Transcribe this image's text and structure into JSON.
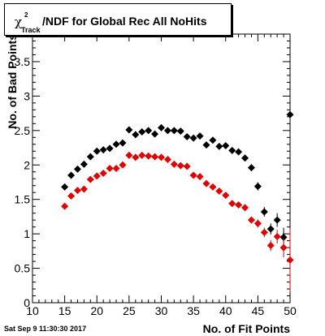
{
  "chart_data": {
    "type": "scatter",
    "title_prefix": "χ",
    "title_sup": "2",
    "title_sub": "Track",
    "title_main": "/NDF for Global Rec All NoHits",
    "xlabel": "No. of Fit Points",
    "ylabel": "No. of Bad Points",
    "xlim": [
      10,
      50
    ],
    "ylim": [
      0,
      3.9
    ],
    "xticks": [
      10,
      15,
      20,
      25,
      30,
      35,
      40,
      45,
      50
    ],
    "yticks": [
      0,
      0.5,
      1,
      1.5,
      2,
      2.5,
      3,
      3.5
    ],
    "ytick_labels": [
      "0",
      "0.5",
      "1",
      "1.5",
      "2",
      "2.5",
      "3",
      "3.5"
    ],
    "grid": false,
    "series": [
      {
        "color": "#000000",
        "x": [
          15,
          16,
          17,
          18,
          19,
          20,
          21,
          22,
          23,
          24,
          25,
          26,
          27,
          28,
          29,
          30,
          31,
          32,
          33,
          34,
          35,
          36,
          37,
          38,
          39,
          40,
          41,
          42,
          43,
          44,
          45,
          46,
          47,
          48,
          49,
          50
        ],
        "y": [
          1.68,
          1.85,
          1.94,
          2.01,
          2.12,
          2.2,
          2.22,
          2.24,
          2.3,
          2.32,
          2.51,
          2.44,
          2.48,
          2.5,
          2.45,
          2.54,
          2.5,
          2.5,
          2.49,
          2.41,
          2.39,
          2.42,
          2.29,
          2.36,
          2.27,
          2.28,
          2.21,
          2.19,
          2.1,
          1.96,
          1.69,
          1.32,
          1.07,
          1.2,
          0.95,
          2.73
        ],
        "err": [
          0.04,
          0.04,
          0.04,
          0.04,
          0.04,
          0.04,
          0.04,
          0.04,
          0.04,
          0.04,
          0.04,
          0.04,
          0.04,
          0.04,
          0.04,
          0.04,
          0.04,
          0.04,
          0.04,
          0.04,
          0.04,
          0.04,
          0.04,
          0.04,
          0.04,
          0.04,
          0.04,
          0.04,
          0.05,
          0.05,
          0.06,
          0.07,
          0.08,
          0.1,
          0.14,
          1.05
        ]
      },
      {
        "color": "#e00000",
        "x": [
          15,
          16,
          17,
          18,
          19,
          20,
          21,
          22,
          23,
          24,
          25,
          26,
          27,
          28,
          29,
          30,
          31,
          32,
          33,
          34,
          35,
          36,
          37,
          38,
          39,
          40,
          41,
          42,
          43,
          44,
          45,
          46,
          47,
          48,
          49,
          50
        ],
        "y": [
          1.4,
          1.55,
          1.63,
          1.65,
          1.79,
          1.84,
          1.88,
          1.95,
          1.95,
          2.0,
          2.14,
          2.11,
          2.14,
          2.13,
          2.12,
          2.11,
          2.08,
          2.01,
          1.99,
          1.98,
          1.85,
          1.83,
          1.73,
          1.68,
          1.62,
          1.56,
          1.44,
          1.42,
          1.38,
          1.2,
          1.15,
          1.02,
          0.83,
          0.96,
          0.8,
          0.62
        ],
        "err": [
          0.04,
          0.04,
          0.04,
          0.04,
          0.04,
          0.04,
          0.04,
          0.04,
          0.04,
          0.04,
          0.04,
          0.04,
          0.04,
          0.04,
          0.04,
          0.04,
          0.04,
          0.04,
          0.04,
          0.04,
          0.04,
          0.04,
          0.04,
          0.04,
          0.04,
          0.04,
          0.04,
          0.04,
          0.05,
          0.05,
          0.06,
          0.07,
          0.08,
          0.1,
          0.14,
          0.46
        ]
      }
    ]
  },
  "footer": {
    "timestamp": "Sat Sep  9 11:30:30 2017"
  }
}
